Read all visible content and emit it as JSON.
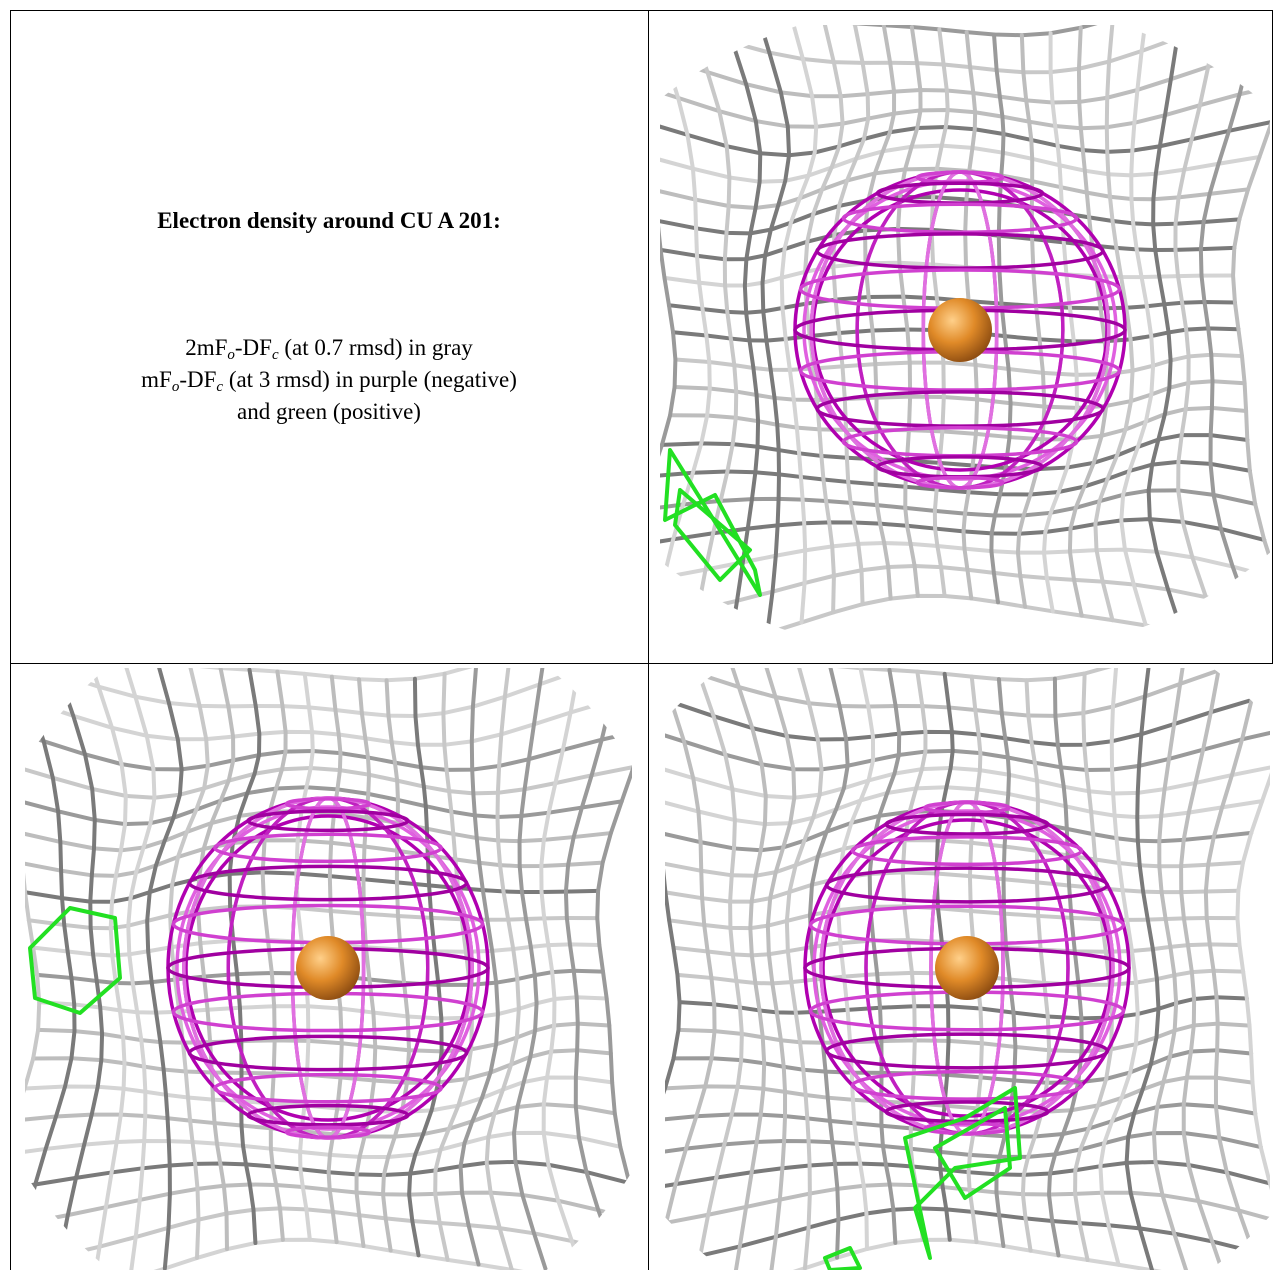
{
  "caption": {
    "title": "Electron density around CU A 201:",
    "lines": [
      [
        "2mF",
        "o",
        "-DF",
        "c",
        " (at 0.7 rmsd) in gray"
      ],
      [
        "mF",
        "o",
        "-DF",
        "c",
        " (at 3 rmsd) in purple (negative)"
      ],
      [
        "and green (positive)"
      ]
    ]
  }
}
